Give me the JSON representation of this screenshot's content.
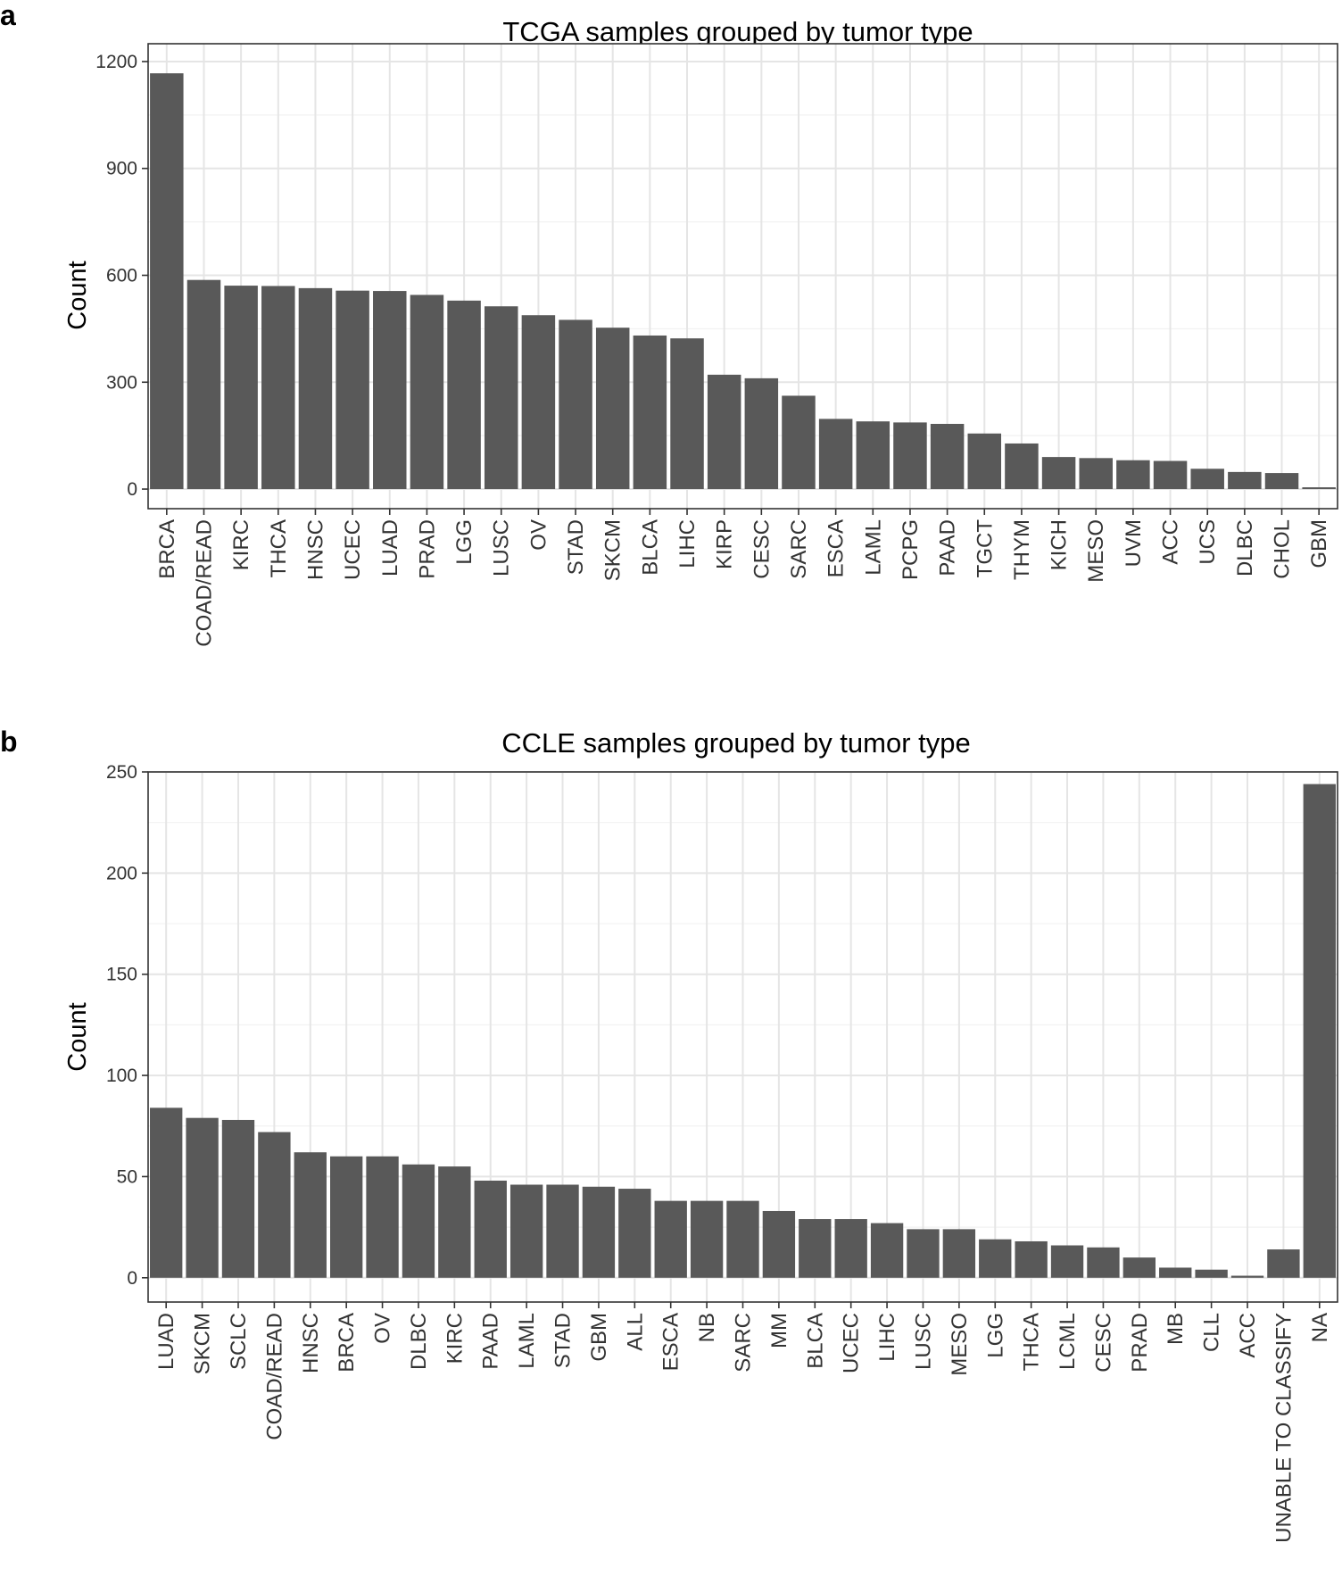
{
  "chart_data": [
    {
      "panel": "a",
      "type": "bar",
      "title": "TCGA samples grouped by tumor type",
      "xlabel": "",
      "ylabel": "Count",
      "ylim": [
        -55,
        1250
      ],
      "yticks": [
        0,
        300,
        600,
        900,
        1200
      ],
      "grid": true,
      "bar_color": "#595959",
      "categories": [
        "BRCA",
        "COAD/READ",
        "KIRC",
        "THCA",
        "HNSC",
        "UCEC",
        "LUAD",
        "PRAD",
        "LGG",
        "LUSC",
        "OV",
        "STAD",
        "SKCM",
        "BLCA",
        "LIHC",
        "KIRP",
        "CESC",
        "SARC",
        "ESCA",
        "LAML",
        "PCPG",
        "PAAD",
        "TGCT",
        "THYM",
        "KICH",
        "MESO",
        "UVM",
        "ACC",
        "UCS",
        "DLBC",
        "CHOL",
        "GBM"
      ],
      "values": [
        1167,
        587,
        571,
        570,
        564,
        557,
        556,
        545,
        529,
        513,
        488,
        475,
        453,
        431,
        423,
        321,
        311,
        262,
        197,
        190,
        187,
        183,
        156,
        128,
        90,
        87,
        81,
        79,
        57,
        48,
        45,
        5
      ]
    },
    {
      "panel": "b",
      "type": "bar",
      "title": "CCLE samples grouped by tumor type",
      "xlabel": "",
      "ylabel": "Count",
      "ylim": [
        -12,
        250
      ],
      "yticks": [
        0,
        50,
        100,
        150,
        200,
        250
      ],
      "grid": true,
      "bar_color": "#595959",
      "categories": [
        "LUAD",
        "SKCM",
        "SCLC",
        "COAD/READ",
        "HNSC",
        "BRCA",
        "OV",
        "DLBC",
        "KIRC",
        "PAAD",
        "LAML",
        "STAD",
        "GBM",
        "ALL",
        "ESCA",
        "NB",
        "SARC",
        "MM",
        "BLCA",
        "UCEC",
        "LIHC",
        "LUSC",
        "MESO",
        "LGG",
        "THCA",
        "LCML",
        "CESC",
        "PRAD",
        "MB",
        "CLL",
        "ACC",
        "UNABLE TO CLASSIFY",
        "NA"
      ],
      "values": [
        84,
        79,
        78,
        72,
        62,
        60,
        60,
        56,
        55,
        48,
        46,
        46,
        45,
        44,
        38,
        38,
        38,
        33,
        29,
        29,
        27,
        24,
        24,
        19,
        18,
        16,
        15,
        10,
        5,
        4,
        1,
        14,
        244
      ]
    }
  ]
}
